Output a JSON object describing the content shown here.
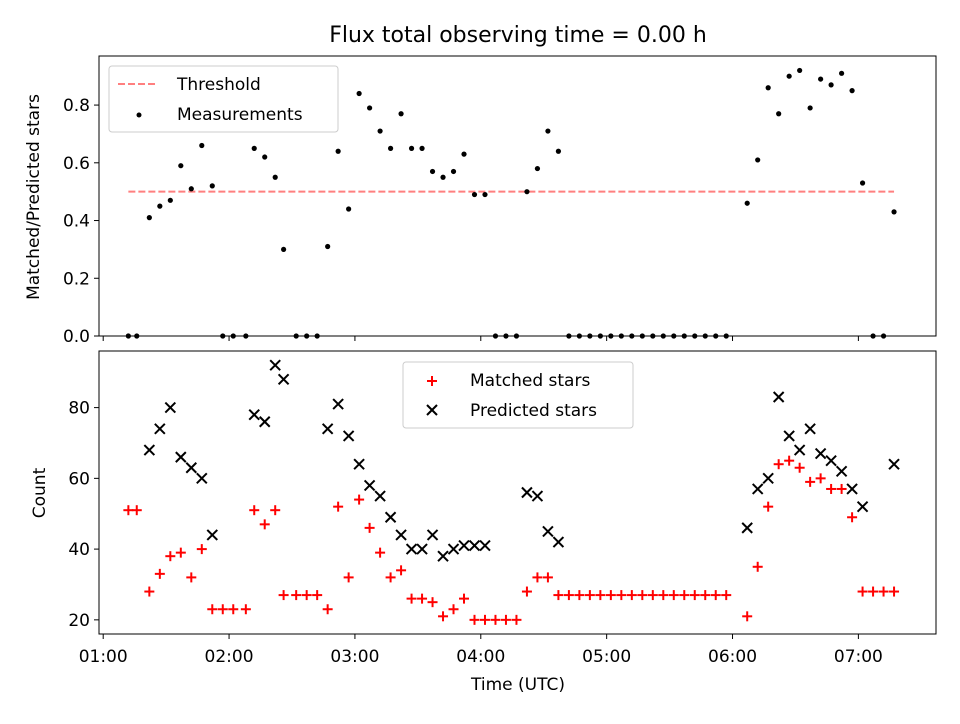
{
  "chart_data": [
    {
      "type": "scatter",
      "title": "Flux total observing time = 0.00 h",
      "xlabel": "",
      "ylabel": "Matched/Predicted stars",
      "xlim": [
        "00:58",
        "07:37"
      ],
      "ylim": [
        0,
        0.97
      ],
      "x_tick_labels": [
        "01:00",
        "02:00",
        "03:00",
        "04:00",
        "05:00",
        "06:00",
        "07:00"
      ],
      "y_ticks": [
        0.0,
        0.2,
        0.4,
        0.6,
        0.8
      ],
      "y_tick_labels": [
        "0.0",
        "0.2",
        "0.4",
        "0.6",
        "0.8"
      ],
      "grid": false,
      "legend_position": "upper-left",
      "threshold": {
        "name": "Threshold",
        "color": "#ff7f7f",
        "value": 0.5,
        "x_range": [
          "01:12",
          "07:17"
        ]
      },
      "series": [
        {
          "name": "Measurements",
          "marker": "dot",
          "color": "#000000",
          "points": [
            [
              "01:12",
              0.0
            ],
            [
              "01:16",
              0.0
            ],
            [
              "01:22",
              0.41
            ],
            [
              "01:27",
              0.45
            ],
            [
              "01:32",
              0.47
            ],
            [
              "01:37",
              0.59
            ],
            [
              "01:42",
              0.51
            ],
            [
              "01:47",
              0.66
            ],
            [
              "01:52",
              0.52
            ],
            [
              "01:57",
              0.0
            ],
            [
              "02:02",
              0.0
            ],
            [
              "02:08",
              0.0
            ],
            [
              "02:12",
              0.65
            ],
            [
              "02:17",
              0.62
            ],
            [
              "02:22",
              0.55
            ],
            [
              "02:26",
              0.3
            ],
            [
              "02:32",
              0.0
            ],
            [
              "02:37",
              0.0
            ],
            [
              "02:42",
              0.0
            ],
            [
              "02:47",
              0.31
            ],
            [
              "02:52",
              0.64
            ],
            [
              "02:57",
              0.44
            ],
            [
              "03:02",
              0.84
            ],
            [
              "03:07",
              0.79
            ],
            [
              "03:12",
              0.71
            ],
            [
              "03:17",
              0.65
            ],
            [
              "03:22",
              0.77
            ],
            [
              "03:27",
              0.65
            ],
            [
              "03:32",
              0.65
            ],
            [
              "03:37",
              0.57
            ],
            [
              "03:42",
              0.55
            ],
            [
              "03:47",
              0.57
            ],
            [
              "03:52",
              0.63
            ],
            [
              "03:57",
              0.49
            ],
            [
              "04:02",
              0.49
            ],
            [
              "04:07",
              0.0
            ],
            [
              "04:12",
              0.0
            ],
            [
              "04:17",
              0.0
            ],
            [
              "04:22",
              0.5
            ],
            [
              "04:27",
              0.58
            ],
            [
              "04:32",
              0.71
            ],
            [
              "04:37",
              0.64
            ],
            [
              "04:42",
              0.0
            ],
            [
              "04:47",
              0.0
            ],
            [
              "04:52",
              0.0
            ],
            [
              "04:57",
              0.0
            ],
            [
              "05:02",
              0.0
            ],
            [
              "05:07",
              0.0
            ],
            [
              "05:12",
              0.0
            ],
            [
              "05:17",
              0.0
            ],
            [
              "05:22",
              0.0
            ],
            [
              "05:27",
              0.0
            ],
            [
              "05:32",
              0.0
            ],
            [
              "05:37",
              0.0
            ],
            [
              "05:42",
              0.0
            ],
            [
              "05:47",
              0.0
            ],
            [
              "05:52",
              0.0
            ],
            [
              "05:57",
              0.0
            ],
            [
              "06:07",
              0.46
            ],
            [
              "06:12",
              0.61
            ],
            [
              "06:17",
              0.86
            ],
            [
              "06:22",
              0.77
            ],
            [
              "06:27",
              0.9
            ],
            [
              "06:32",
              0.92
            ],
            [
              "06:37",
              0.79
            ],
            [
              "06:42",
              0.89
            ],
            [
              "06:47",
              0.87
            ],
            [
              "06:52",
              0.91
            ],
            [
              "06:57",
              0.85
            ],
            [
              "07:02",
              0.53
            ],
            [
              "07:07",
              0.0
            ],
            [
              "07:12",
              0.0
            ],
            [
              "07:17",
              0.43
            ]
          ]
        }
      ]
    },
    {
      "type": "scatter",
      "title": "",
      "xlabel": "Time (UTC)",
      "ylabel": "Count",
      "xlim": [
        "00:58",
        "07:37"
      ],
      "ylim": [
        16,
        96
      ],
      "x_tick_labels": [
        "01:00",
        "02:00",
        "03:00",
        "04:00",
        "05:00",
        "06:00",
        "07:00"
      ],
      "y_ticks": [
        20,
        40,
        60,
        80
      ],
      "y_tick_labels": [
        "20",
        "40",
        "60",
        "80"
      ],
      "grid": false,
      "legend_position": "upper-center",
      "series": [
        {
          "name": "Matched stars",
          "marker": "plus",
          "color": "#ff0000",
          "points": [
            [
              "01:12",
              51
            ],
            [
              "01:16",
              51
            ],
            [
              "01:22",
              28
            ],
            [
              "01:27",
              33
            ],
            [
              "01:32",
              38
            ],
            [
              "01:37",
              39
            ],
            [
              "01:42",
              32
            ],
            [
              "01:47",
              40
            ],
            [
              "01:52",
              23
            ],
            [
              "01:57",
              23
            ],
            [
              "02:02",
              23
            ],
            [
              "02:08",
              23
            ],
            [
              "02:12",
              51
            ],
            [
              "02:17",
              47
            ],
            [
              "02:22",
              51
            ],
            [
              "02:26",
              27
            ],
            [
              "02:32",
              27
            ],
            [
              "02:37",
              27
            ],
            [
              "02:42",
              27
            ],
            [
              "02:47",
              23
            ],
            [
              "02:52",
              52
            ],
            [
              "02:57",
              32
            ],
            [
              "03:02",
              54
            ],
            [
              "03:07",
              46
            ],
            [
              "03:12",
              39
            ],
            [
              "03:17",
              32
            ],
            [
              "03:22",
              34
            ],
            [
              "03:27",
              26
            ],
            [
              "03:32",
              26
            ],
            [
              "03:37",
              25
            ],
            [
              "03:42",
              21
            ],
            [
              "03:47",
              23
            ],
            [
              "03:52",
              26
            ],
            [
              "03:57",
              20
            ],
            [
              "04:02",
              20
            ],
            [
              "04:07",
              20
            ],
            [
              "04:12",
              20
            ],
            [
              "04:17",
              20
            ],
            [
              "04:22",
              28
            ],
            [
              "04:27",
              32
            ],
            [
              "04:32",
              32
            ],
            [
              "04:37",
              27
            ],
            [
              "04:42",
              27
            ],
            [
              "04:47",
              27
            ],
            [
              "04:52",
              27
            ],
            [
              "04:57",
              27
            ],
            [
              "05:02",
              27
            ],
            [
              "05:07",
              27
            ],
            [
              "05:12",
              27
            ],
            [
              "05:17",
              27
            ],
            [
              "05:22",
              27
            ],
            [
              "05:27",
              27
            ],
            [
              "05:32",
              27
            ],
            [
              "05:37",
              27
            ],
            [
              "05:42",
              27
            ],
            [
              "05:47",
              27
            ],
            [
              "05:52",
              27
            ],
            [
              "05:57",
              27
            ],
            [
              "06:07",
              21
            ],
            [
              "06:12",
              35
            ],
            [
              "06:17",
              52
            ],
            [
              "06:22",
              64
            ],
            [
              "06:27",
              65
            ],
            [
              "06:32",
              63
            ],
            [
              "06:37",
              59
            ],
            [
              "06:42",
              60
            ],
            [
              "06:47",
              57
            ],
            [
              "06:52",
              57
            ],
            [
              "06:57",
              49
            ],
            [
              "07:02",
              28
            ],
            [
              "07:07",
              28
            ],
            [
              "07:12",
              28
            ],
            [
              "07:17",
              28
            ]
          ]
        },
        {
          "name": "Predicted stars",
          "marker": "x",
          "color": "#000000",
          "points": [
            [
              "01:22",
              68
            ],
            [
              "01:27",
              74
            ],
            [
              "01:32",
              80
            ],
            [
              "01:37",
              66
            ],
            [
              "01:42",
              63
            ],
            [
              "01:47",
              60
            ],
            [
              "01:52",
              44
            ],
            [
              "02:12",
              78
            ],
            [
              "02:17",
              76
            ],
            [
              "02:22",
              92
            ],
            [
              "02:26",
              88
            ],
            [
              "02:47",
              74
            ],
            [
              "02:52",
              81
            ],
            [
              "02:57",
              72
            ],
            [
              "03:02",
              64
            ],
            [
              "03:07",
              58
            ],
            [
              "03:12",
              55
            ],
            [
              "03:17",
              49
            ],
            [
              "03:22",
              44
            ],
            [
              "03:27",
              40
            ],
            [
              "03:32",
              40
            ],
            [
              "03:37",
              44
            ],
            [
              "03:42",
              38
            ],
            [
              "03:47",
              40
            ],
            [
              "03:52",
              41
            ],
            [
              "03:57",
              41
            ],
            [
              "04:02",
              41
            ],
            [
              "04:22",
              56
            ],
            [
              "04:27",
              55
            ],
            [
              "04:32",
              45
            ],
            [
              "04:37",
              42
            ],
            [
              "06:07",
              46
            ],
            [
              "06:12",
              57
            ],
            [
              "06:17",
              60
            ],
            [
              "06:22",
              83
            ],
            [
              "06:27",
              72
            ],
            [
              "06:32",
              68
            ],
            [
              "06:37",
              74
            ],
            [
              "06:42",
              67
            ],
            [
              "06:47",
              65
            ],
            [
              "06:52",
              62
            ],
            [
              "06:57",
              57
            ],
            [
              "07:02",
              52
            ],
            [
              "07:17",
              64
            ]
          ]
        }
      ]
    }
  ]
}
